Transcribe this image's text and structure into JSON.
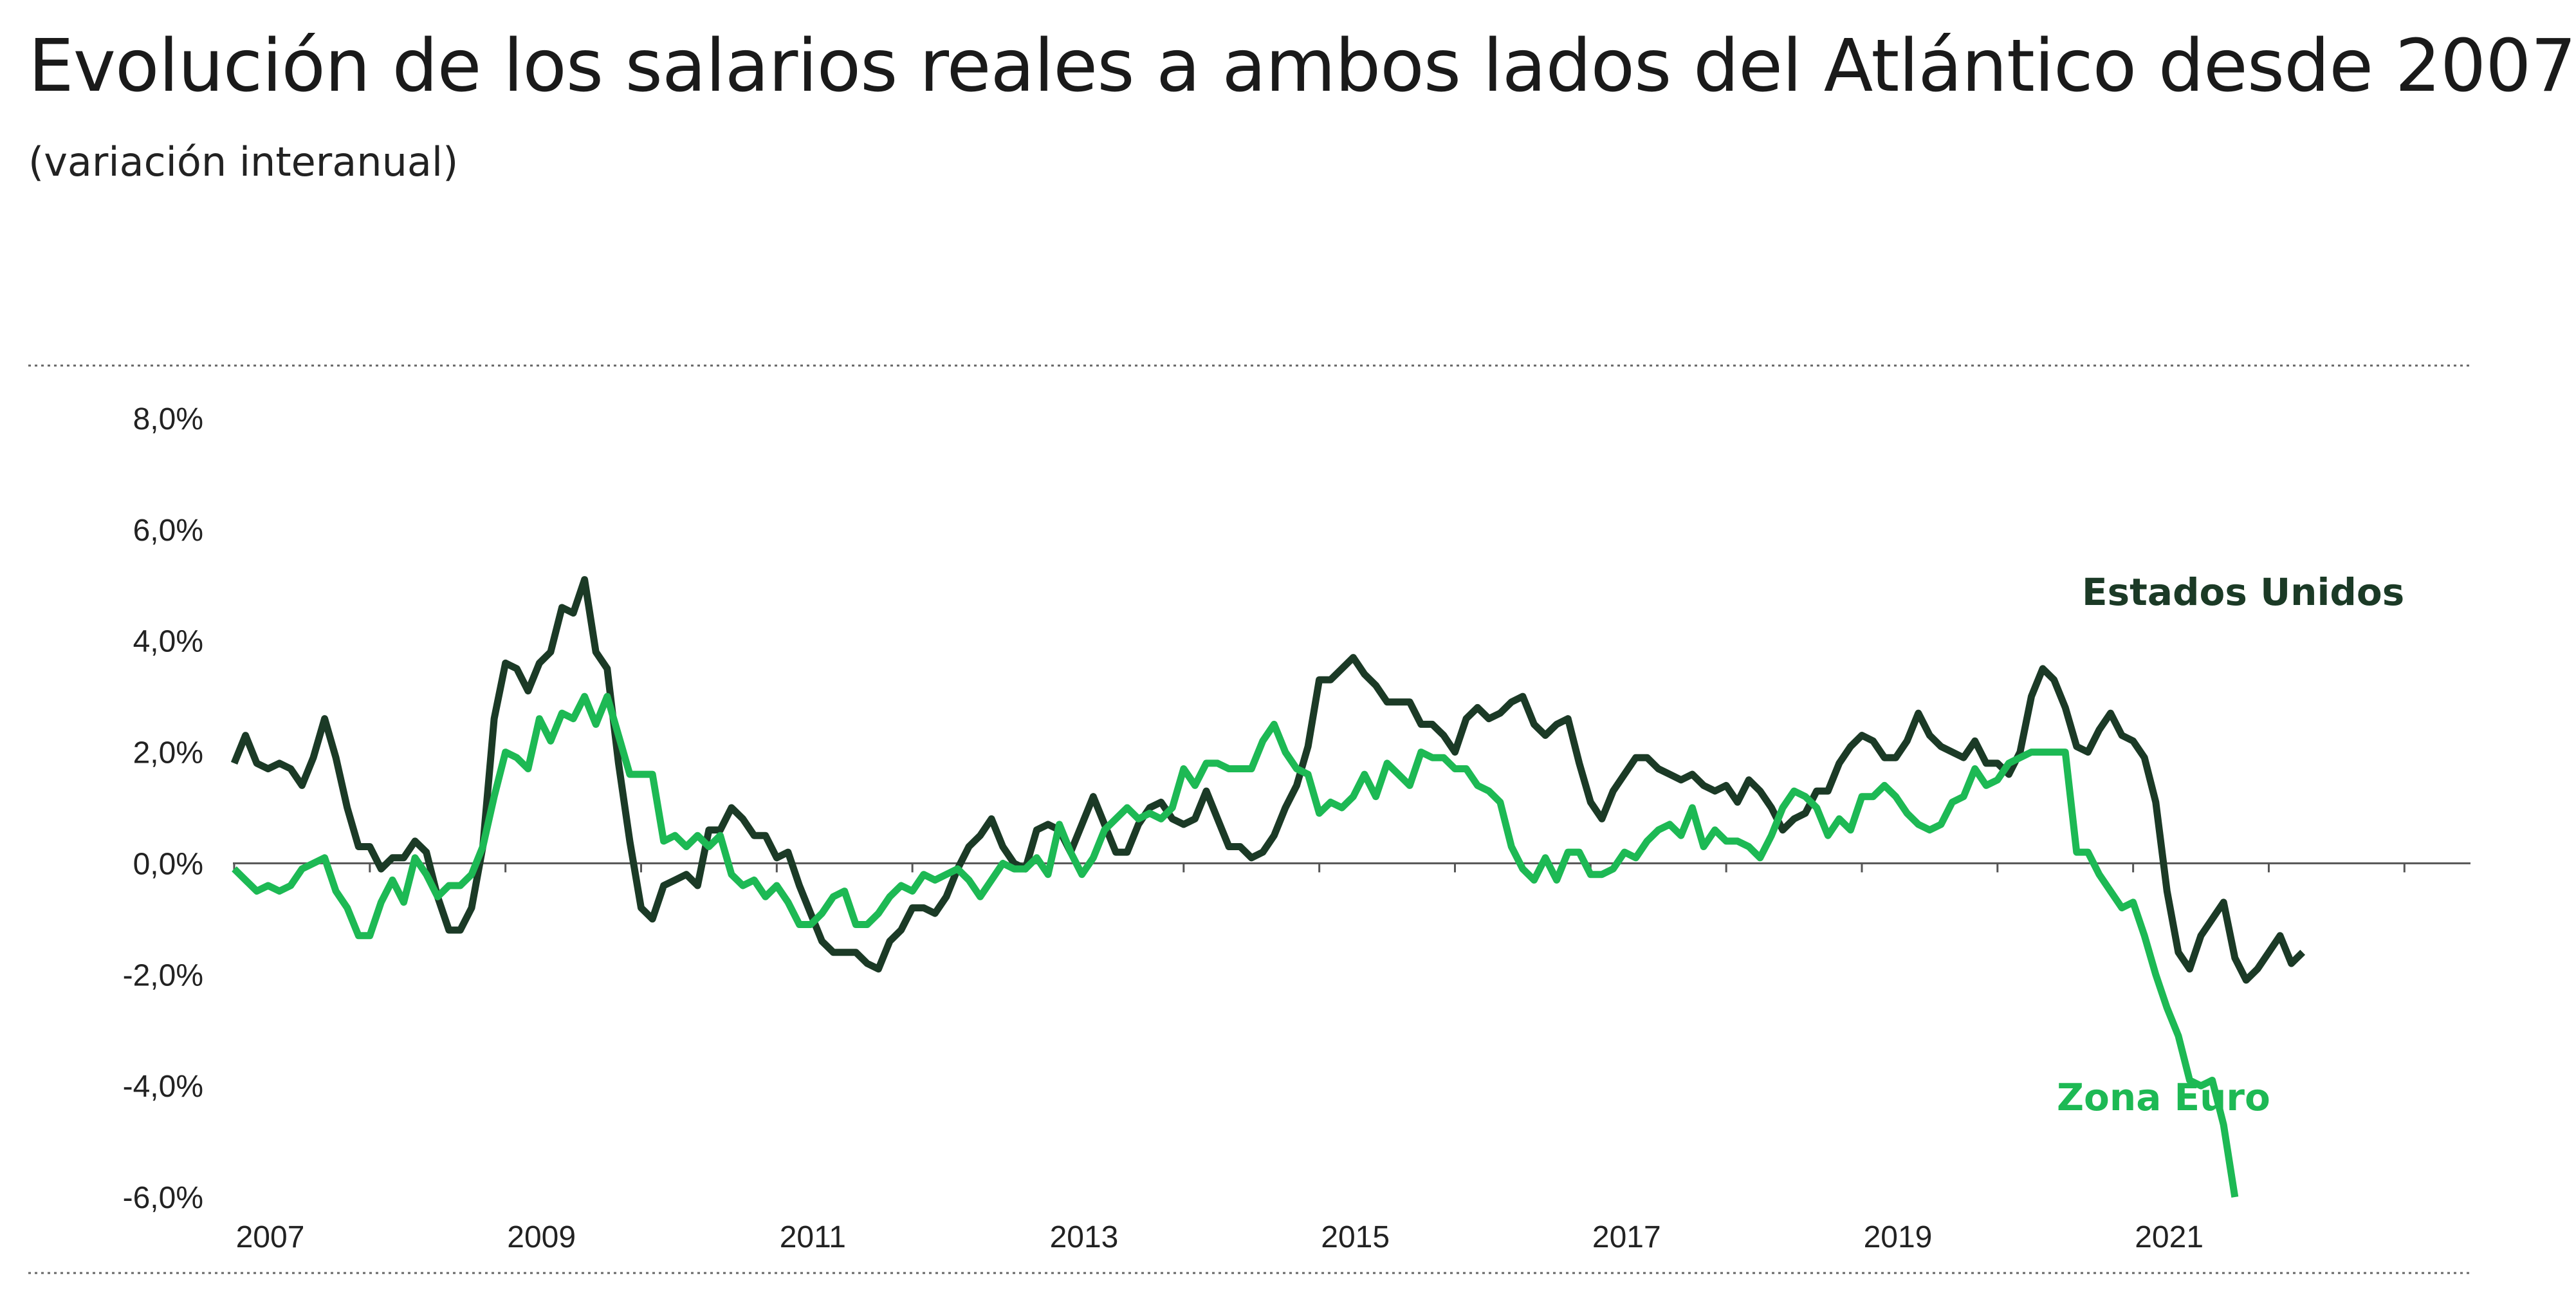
{
  "chart_data": {
    "type": "line",
    "title": "Evolución de los salarios reales a ambos lados del Atlántico desde 2007",
    "subtitle": "(variación interanual)",
    "xlabel": "",
    "ylabel": "",
    "x_start": 2007.0,
    "x_step": 0.0833333,
    "x_range": [
      2007.0,
      2023.25
    ],
    "ylim": [
      -6,
      8
    ],
    "y_ticks": [
      8,
      6,
      4,
      2,
      0,
      -2,
      -4,
      -6
    ],
    "y_tick_labels": [
      "8,0%",
      "6,0%",
      "4,0%",
      "2,0%",
      "0,0%",
      "-2,0%",
      "-4,0%",
      "-6,0%"
    ],
    "x_ticks": [
      2007,
      2009,
      2011,
      2013,
      2015,
      2017,
      2019,
      2021
    ],
    "x_tick_labels": [
      "2007",
      "2009",
      "2011",
      "2013",
      "2015",
      "2017",
      "2019",
      "2021"
    ],
    "grid": false,
    "colors": {
      "us": "#1b3a26",
      "eu": "#1db954",
      "axis": "#555555"
    },
    "series": [
      {
        "name": "Estados Unidos",
        "values": [
          1.8,
          2.3,
          1.8,
          1.7,
          1.8,
          1.7,
          1.4,
          1.9,
          2.6,
          1.9,
          1.0,
          0.3,
          0.3,
          -0.1,
          0.1,
          0.1,
          0.4,
          0.2,
          -0.6,
          -1.2,
          -1.2,
          -0.8,
          0.3,
          2.6,
          3.6,
          3.5,
          3.1,
          3.6,
          3.8,
          4.6,
          4.5,
          5.1,
          3.8,
          3.5,
          1.8,
          0.4,
          -0.8,
          -1.0,
          -0.4,
          -0.3,
          -0.2,
          -0.4,
          0.6,
          0.6,
          1.0,
          0.8,
          0.5,
          0.5,
          0.1,
          0.2,
          -0.4,
          -0.9,
          -1.4,
          -1.6,
          -1.6,
          -1.6,
          -1.8,
          -1.9,
          -1.4,
          -1.2,
          -0.8,
          -0.8,
          -0.9,
          -0.6,
          -0.1,
          0.3,
          0.5,
          0.8,
          0.3,
          0.0,
          -0.1,
          0.6,
          0.7,
          0.6,
          0.2,
          0.7,
          1.2,
          0.7,
          0.2,
          0.2,
          0.7,
          1.0,
          1.1,
          0.8,
          0.7,
          0.8,
          1.3,
          0.8,
          0.3,
          0.3,
          0.1,
          0.2,
          0.5,
          1.0,
          1.4,
          2.1,
          3.3,
          3.3,
          3.5,
          3.7,
          3.4,
          3.2,
          2.9,
          2.9,
          2.9,
          2.5,
          2.5,
          2.3,
          2.0,
          2.6,
          2.8,
          2.6,
          2.7,
          2.9,
          3.0,
          2.5,
          2.3,
          2.5,
          2.6,
          1.8,
          1.1,
          0.8,
          1.3,
          1.6,
          1.9,
          1.9,
          1.7,
          1.6,
          1.5,
          1.6,
          1.4,
          1.3,
          1.4,
          1.1,
          1.5,
          1.3,
          1.0,
          0.6,
          0.8,
          0.9,
          1.3,
          1.3,
          1.8,
          2.1,
          2.3,
          2.2,
          1.9,
          1.9,
          2.2,
          2.7,
          2.3,
          2.1,
          2.0,
          1.9,
          2.2,
          1.8,
          1.8,
          1.6,
          2.0,
          3.0,
          3.5,
          3.3,
          2.8,
          2.1,
          2.0,
          2.4,
          2.7,
          2.3,
          2.2,
          1.9,
          1.1,
          -0.5,
          -1.6,
          -1.9,
          -1.3,
          -1.0,
          -0.7,
          -1.7,
          -2.1,
          -1.9,
          -1.6,
          -1.3,
          -1.8,
          -1.6
        ]
      },
      {
        "name": "Zona Euro",
        "values": [
          -0.1,
          -0.3,
          -0.5,
          -0.4,
          -0.5,
          -0.4,
          -0.1,
          0.0,
          0.1,
          -0.5,
          -0.8,
          -1.3,
          -1.3,
          -0.7,
          -0.3,
          -0.7,
          0.1,
          -0.2,
          -0.6,
          -0.4,
          -0.4,
          -0.2,
          0.3,
          1.2,
          2.0,
          1.9,
          1.7,
          2.6,
          2.2,
          2.7,
          2.6,
          3.0,
          2.5,
          3.0,
          2.3,
          1.6,
          1.6,
          1.6,
          0.4,
          0.5,
          0.3,
          0.5,
          0.3,
          0.5,
          -0.2,
          -0.4,
          -0.3,
          -0.6,
          -0.4,
          -0.7,
          -1.1,
          -1.1,
          -0.9,
          -0.6,
          -0.5,
          -1.1,
          -1.1,
          -0.9,
          -0.6,
          -0.4,
          -0.5,
          -0.2,
          -0.3,
          -0.2,
          -0.1,
          -0.3,
          -0.6,
          -0.3,
          0.0,
          -0.1,
          -0.1,
          0.1,
          -0.2,
          0.7,
          0.2,
          -0.2,
          0.1,
          0.6,
          0.8,
          1.0,
          0.8,
          0.9,
          0.8,
          1.0,
          1.7,
          1.4,
          1.8,
          1.8,
          1.7,
          1.7,
          1.7,
          2.2,
          2.5,
          2.0,
          1.7,
          1.6,
          0.9,
          1.1,
          1.0,
          1.2,
          1.6,
          1.2,
          1.8,
          1.6,
          1.4,
          2.0,
          1.9,
          1.9,
          1.7,
          1.7,
          1.4,
          1.3,
          1.1,
          0.3,
          -0.1,
          -0.3,
          0.1,
          -0.3,
          0.2,
          0.2,
          -0.2,
          -0.2,
          -0.1,
          0.2,
          0.1,
          0.4,
          0.6,
          0.7,
          0.5,
          1.0,
          0.3,
          0.6,
          0.4,
          0.4,
          0.3,
          0.1,
          0.5,
          1.0,
          1.3,
          1.2,
          1.0,
          0.5,
          0.8,
          0.6,
          1.2,
          1.2,
          1.4,
          1.2,
          0.9,
          0.7,
          0.6,
          0.7,
          1.1,
          1.2,
          1.7,
          1.4,
          1.5,
          1.8,
          1.9,
          2.0,
          2.0,
          2.0,
          2.0,
          0.2,
          0.2,
          -0.2,
          -0.5,
          -0.8,
          -0.7,
          -1.3,
          -2.0,
          -2.6,
          -3.1,
          -3.9,
          -4.0,
          -3.9,
          -4.7,
          -6.0
        ]
      }
    ],
    "annotations": {
      "us_label": "Estados Unidos",
      "eu_label": "Zona Euro"
    }
  }
}
